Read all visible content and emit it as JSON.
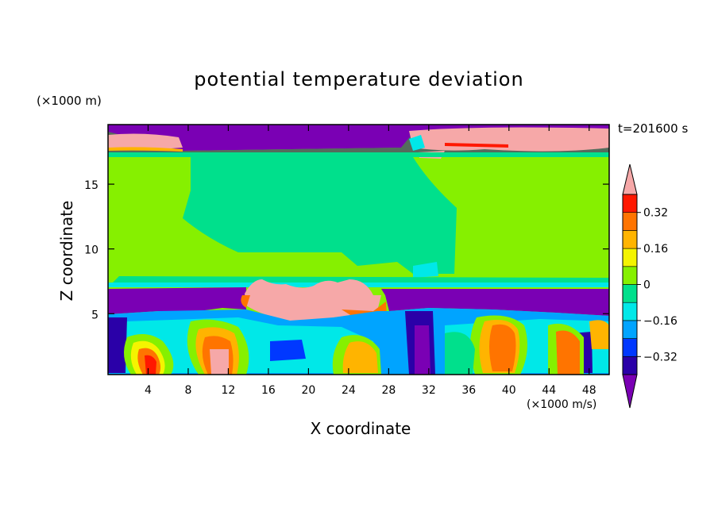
{
  "chart_data": {
    "type": "heatmap",
    "title": "potential temperature deviation",
    "xlabel": "X coordinate",
    "ylabel": "Z coordinate",
    "x_unit": "(×1000 m/s)",
    "y_unit": "(×1000 m)",
    "time_label": "t=201600 s",
    "xlim": [
      0,
      50
    ],
    "ylim": [
      0.3,
      19.6
    ],
    "x_ticks": [
      4,
      8,
      12,
      16,
      20,
      24,
      28,
      32,
      36,
      40,
      44,
      48
    ],
    "y_ticks": [
      5,
      10,
      15
    ],
    "colorbar": {
      "levels": [
        -0.48,
        -0.4,
        -0.32,
        -0.24,
        -0.16,
        -0.08,
        0,
        0.08,
        0.16,
        0.24,
        0.32,
        0.4
      ],
      "tick_labels": [
        "0.32",
        "0.16",
        "0",
        "−0.16",
        "−0.32"
      ],
      "tick_values": [
        0.32,
        0.16,
        0,
        -0.16,
        -0.32
      ],
      "colors": [
        "#7a00b4",
        "#2a00a8",
        "#0038ff",
        "#00a4ff",
        "#00e8e8",
        "#00e08c",
        "#86f000",
        "#f4f400",
        "#ffb400",
        "#ff7400",
        "#ff1800",
        "#f6a8a8"
      ]
    }
  }
}
